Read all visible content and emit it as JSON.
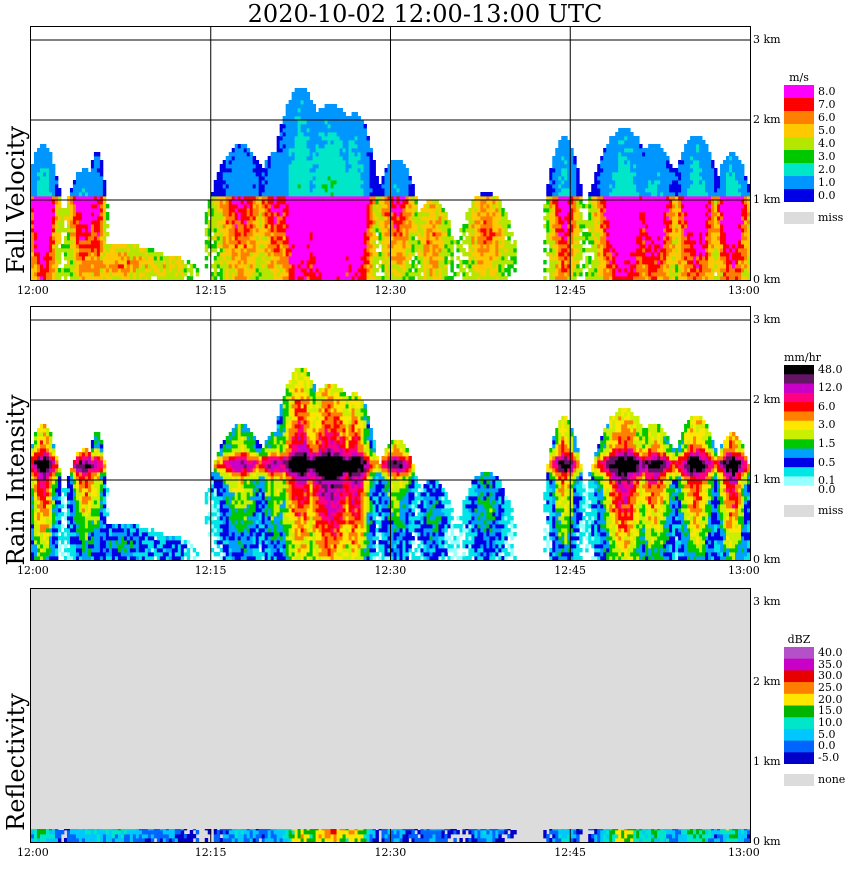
{
  "title": "2020-10-02   12:00-13:00 UTC",
  "colors": {
    "background": "#ffffff",
    "missing": "#dcdcdc",
    "grid": "#000000"
  },
  "chart_data": [
    {
      "type": "heatmap",
      "ylabel": "Fall Velocity",
      "colorbar_unit": "m/s",
      "x_ticks": [
        "12:00",
        "12:15",
        "12:30",
        "12:45",
        "13:00"
      ],
      "y_ticks": [
        "3 km",
        "2 km",
        "1 km",
        "0 km"
      ],
      "ylim_km": [
        0,
        3
      ],
      "levels": [
        {
          "label": "8.0",
          "color": "#ff00ff"
        },
        {
          "label": "7.0",
          "color": "#ff0000"
        },
        {
          "label": "6.0",
          "color": "#ff8000"
        },
        {
          "label": "5.0",
          "color": "#ffc800"
        },
        {
          "label": "4.0",
          "color": "#b4e600"
        },
        {
          "label": "3.0",
          "color": "#00c800"
        },
        {
          "label": "2.0",
          "color": "#00e6c8"
        },
        {
          "label": "1.0",
          "color": "#0096ff"
        },
        {
          "label": "0.0",
          "color": "#0000e6"
        }
      ],
      "missing_label": "miss",
      "missing_fill": false
    },
    {
      "type": "heatmap",
      "ylabel": "Rain Intensity",
      "colorbar_unit": "mm/hr",
      "x_ticks": [
        "12:00",
        "12:15",
        "12:30",
        "12:45",
        "13:00"
      ],
      "y_ticks": [
        "3 km",
        "2 km",
        "1 km",
        "0 km"
      ],
      "ylim_km": [
        0,
        3
      ],
      "levels": [
        {
          "label": "48.0",
          "color": "#000000"
        },
        {
          "label": "",
          "color": "#641464"
        },
        {
          "label": "12.0",
          "color": "#c800c8"
        },
        {
          "label": "",
          "color": "#ff0080"
        },
        {
          "label": "6.0",
          "color": "#ff0000"
        },
        {
          "label": "",
          "color": "#ff8000"
        },
        {
          "label": "3.0",
          "color": "#ffe600"
        },
        {
          "label": "",
          "color": "#c8f000"
        },
        {
          "label": "1.5",
          "color": "#00c800"
        },
        {
          "label": "",
          "color": "#00a0ff"
        },
        {
          "label": "0.5",
          "color": "#0000e6"
        },
        {
          "label": "",
          "color": "#00e6e6"
        },
        {
          "label": "0.1",
          "color": "#96ffff"
        },
        {
          "label": "0.0",
          "color": "#ffffff"
        }
      ],
      "missing_label": "miss",
      "missing_fill": false
    },
    {
      "type": "heatmap",
      "ylabel": "Reflectivity",
      "colorbar_unit": "dBZ",
      "x_ticks": [
        "12:00",
        "12:15",
        "12:30",
        "12:45",
        "13:00"
      ],
      "y_ticks": [
        "3 km",
        "2 km",
        "1 km",
        "0 km"
      ],
      "ylim_km": [
        0,
        3
      ],
      "levels": [
        {
          "label": "40.0",
          "color": "#b450c8"
        },
        {
          "label": "35.0",
          "color": "#c800c8"
        },
        {
          "label": "30.0",
          "color": "#e60000"
        },
        {
          "label": "25.0",
          "color": "#ff8000"
        },
        {
          "label": "20.0",
          "color": "#ffe600"
        },
        {
          "label": "15.0",
          "color": "#00b400"
        },
        {
          "label": "10.0",
          "color": "#00e6c8"
        },
        {
          "label": "5.0",
          "color": "#00c8ff"
        },
        {
          "label": "0.0",
          "color": "#0064ff"
        },
        {
          "label": "-5.0",
          "color": "#0000c8"
        }
      ],
      "missing_label": "none",
      "missing_fill": true
    }
  ]
}
